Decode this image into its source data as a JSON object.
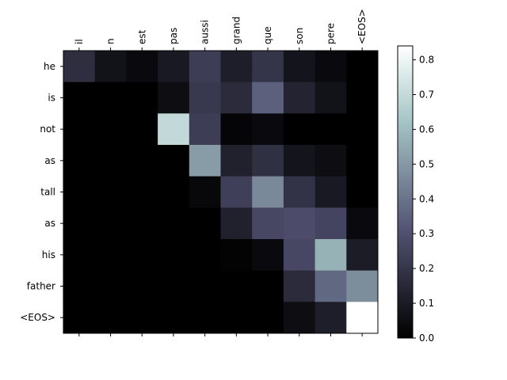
{
  "chart_data": {
    "type": "heatmap",
    "colormap": "bone",
    "x_tick_position": "top",
    "x": [
      "il",
      "n",
      "est",
      "pas",
      "aussi",
      "grand",
      "que",
      "son",
      "pere",
      "<EOS>"
    ],
    "y": [
      "he",
      "is",
      "not",
      "as",
      "tall",
      "as",
      "his",
      "father",
      "<EOS>"
    ],
    "z": [
      [
        0.18,
        0.07,
        0.04,
        0.1,
        0.24,
        0.12,
        0.21,
        0.08,
        0.04,
        0.0
      ],
      [
        0.0,
        0.0,
        0.0,
        0.05,
        0.22,
        0.17,
        0.36,
        0.14,
        0.07,
        0.0
      ],
      [
        0.0,
        0.0,
        0.0,
        0.7,
        0.24,
        0.02,
        0.04,
        0.0,
        0.0,
        0.0
      ],
      [
        0.0,
        0.0,
        0.0,
        0.0,
        0.52,
        0.13,
        0.19,
        0.08,
        0.05,
        0.0
      ],
      [
        0.0,
        0.0,
        0.0,
        0.0,
        0.03,
        0.25,
        0.47,
        0.2,
        0.1,
        0.0
      ],
      [
        0.0,
        0.0,
        0.0,
        0.0,
        0.0,
        0.13,
        0.28,
        0.3,
        0.27,
        0.04
      ],
      [
        0.0,
        0.0,
        0.0,
        0.0,
        0.0,
        0.01,
        0.04,
        0.28,
        0.58,
        0.11
      ],
      [
        0.0,
        0.0,
        0.0,
        0.0,
        0.0,
        0.0,
        0.0,
        0.17,
        0.38,
        0.48
      ],
      [
        0.0,
        0.0,
        0.0,
        0.0,
        0.0,
        0.0,
        0.0,
        0.05,
        0.12,
        0.84
      ]
    ],
    "zlim": [
      0.0,
      0.84
    ],
    "colorbar": {
      "ticks": [
        0.0,
        0.1,
        0.2,
        0.3,
        0.4,
        0.5,
        0.6,
        0.7,
        0.8
      ],
      "tick_labels": [
        "0.0",
        "0.1",
        "0.2",
        "0.3",
        "0.4",
        "0.5",
        "0.6",
        "0.7",
        "0.8"
      ],
      "placement": "right"
    }
  }
}
